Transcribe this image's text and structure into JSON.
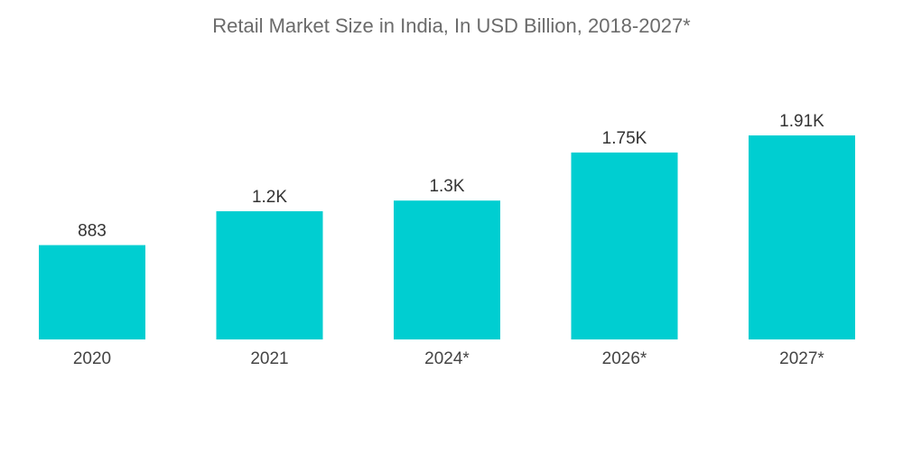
{
  "chart_data": {
    "type": "bar",
    "title": "Retail Market Size in India, In USD Billion, 2018-2027*",
    "categories": [
      "2020",
      "2021",
      "2024*",
      "2026*",
      "2027*"
    ],
    "values": [
      883,
      1200,
      1300,
      1750,
      1910
    ],
    "value_labels": [
      "883",
      "1.2K",
      "1.3K",
      "1.75K",
      "1.91K"
    ],
    "xlabel": "",
    "ylabel": "",
    "ylim": [
      0,
      2000
    ],
    "grid": false,
    "bar_color": "#00ced1"
  }
}
